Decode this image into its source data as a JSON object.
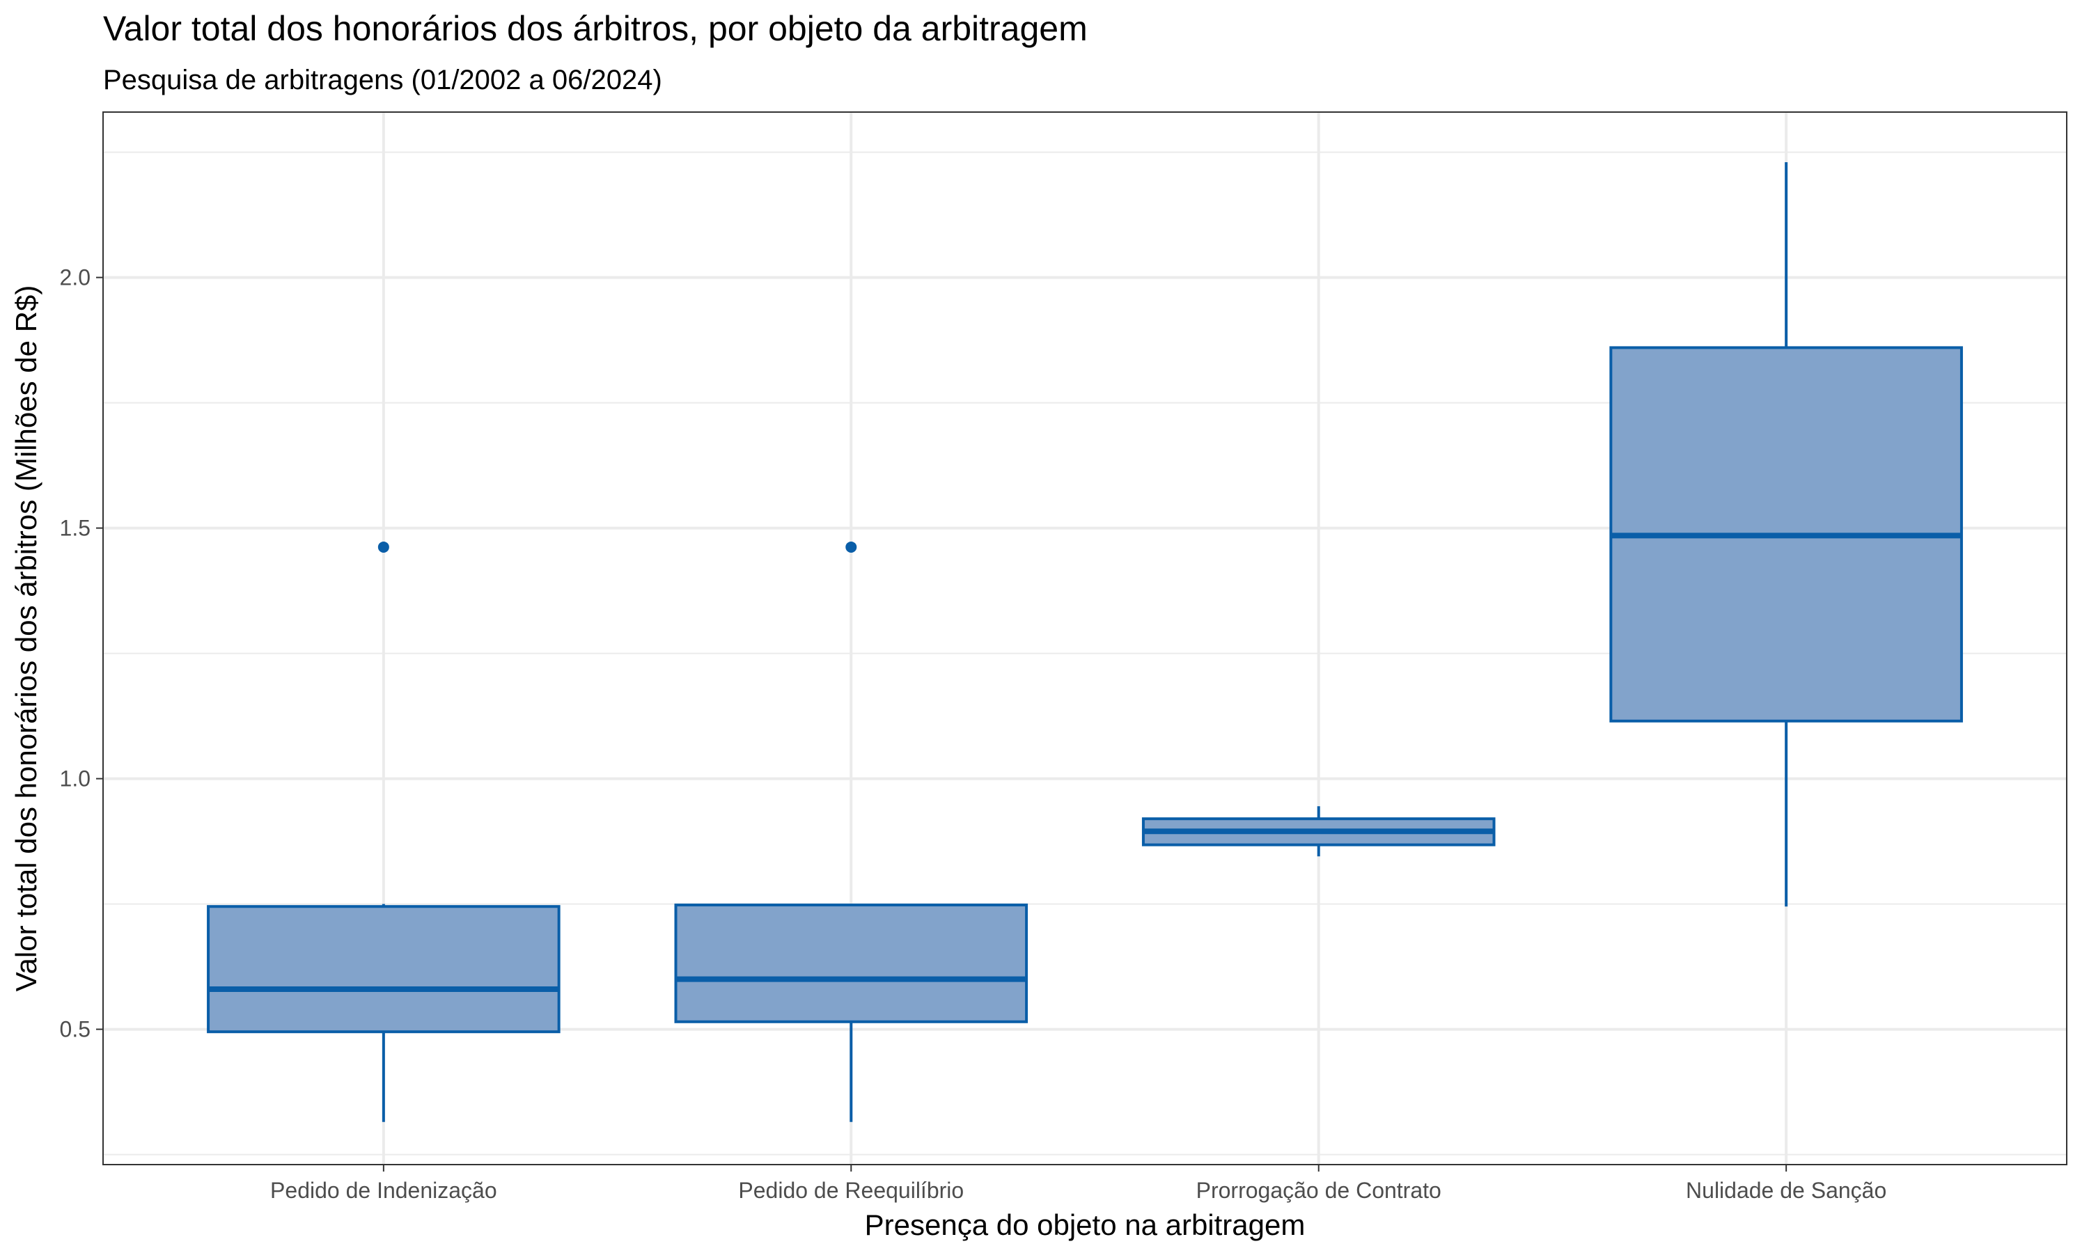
{
  "chart_data": {
    "type": "box",
    "title": "Valor total dos honorários dos árbitros, por objeto da arbitragem",
    "subtitle": "Pesquisa de arbitragens (01/2002 a 06/2024)",
    "xlabel": "Presença do objeto na arbitragem",
    "ylabel": "Valor total dos honorários dos árbitros (Milhões de R$)",
    "ylim": [
      0.23,
      2.33
    ],
    "y_ticks": [
      0.5,
      1.0,
      1.5,
      2.0
    ],
    "y_tick_labels": [
      "0.5",
      "1.0",
      "1.5",
      "2.0"
    ],
    "grid": true,
    "categories": [
      "Pedido de Indenização",
      "Pedido de Reequilíbrio",
      "Prorrogação de Contrato",
      "Nulidade de Sanção"
    ],
    "boxes": [
      {
        "min": 0.315,
        "q1": 0.495,
        "median": 0.58,
        "q3": 0.745,
        "max": 0.75,
        "outliers": [
          1.462
        ]
      },
      {
        "min": 0.315,
        "q1": 0.515,
        "median": 0.6,
        "q3": 0.748,
        "max": 0.75,
        "outliers": [
          1.462
        ]
      },
      {
        "min": 0.845,
        "q1": 0.868,
        "median": 0.895,
        "q3": 0.92,
        "max": 0.945,
        "outliers": []
      },
      {
        "min": 0.745,
        "q1": 1.115,
        "median": 1.485,
        "q3": 1.86,
        "max": 2.23,
        "outliers": []
      }
    ],
    "colors": {
      "box_fill": "#82a3cb",
      "box_stroke": "#0a5ea8",
      "grid": "#ebebeb",
      "panel_border": "#333333",
      "tick_text": "#4d4d4d"
    }
  }
}
